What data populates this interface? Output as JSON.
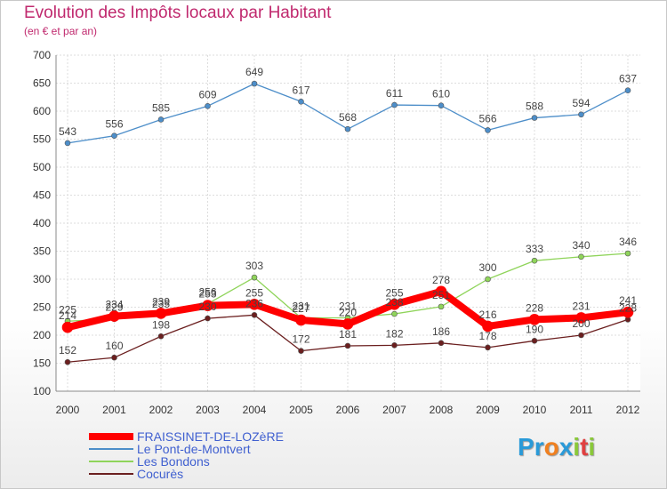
{
  "title": "Evolution des Impôts locaux par Habitant",
  "subtitle": "(en € et par an)",
  "chart_data": {
    "type": "line",
    "title": "Evolution des Impôts locaux par Habitant",
    "subtitle": "(en € et par an)",
    "xlabel": "",
    "ylabel": "",
    "x": [
      "2000",
      "2001",
      "2002",
      "2003",
      "2004",
      "2005",
      "2006",
      "2007",
      "2008",
      "2009",
      "2010",
      "2011",
      "2012"
    ],
    "ylim": [
      100,
      700
    ],
    "yticks": [
      100,
      150,
      200,
      250,
      300,
      350,
      400,
      450,
      500,
      550,
      600,
      650,
      700
    ],
    "grid": true,
    "legend_position": "bottom-left",
    "series": [
      {
        "name": "FRAISSINET-DE-LOZèRE",
        "color": "#ff0000",
        "values": [
          214,
          234,
          239,
          253,
          255,
          227,
          220,
          255,
          278,
          216,
          228,
          231,
          241
        ]
      },
      {
        "name": "Le Pont-de-Montvert",
        "color": "#4d8ec9",
        "values": [
          543,
          556,
          585,
          609,
          649,
          617,
          568,
          611,
          610,
          566,
          588,
          594,
          637
        ]
      },
      {
        "name": "Les Bondons",
        "color": "#8fd45a",
        "values": [
          225,
          229,
          235,
          256,
          303,
          231,
          231,
          238,
          251,
          300,
          333,
          340,
          346
        ]
      },
      {
        "name": "Cocurès",
        "color": "#6b1f1f",
        "values": [
          152,
          160,
          198,
          230,
          236,
          172,
          181,
          182,
          186,
          178,
          190,
          200,
          228
        ]
      }
    ]
  },
  "legend": [
    {
      "label": "FRAISSINET-DE-LOZèRE",
      "color": "#ff0000",
      "label_color": "#4060d0"
    },
    {
      "label": "Le Pont-de-Montvert",
      "color": "#4d8ec9",
      "label_color": "#4060d0"
    },
    {
      "label": "Les Bondons",
      "color": "#8fd45a",
      "label_color": "#4060d0"
    },
    {
      "label": "Cocurès",
      "color": "#6b1f1f",
      "label_color": "#4060d0"
    }
  ],
  "logo": {
    "letters": [
      "P",
      "r",
      "o",
      "x",
      "i",
      "t",
      "i"
    ],
    "colors": [
      "#2a9ad8",
      "#2a9ad8",
      "#f08020",
      "#2a9ad8",
      "#8ac83a",
      "#e04040",
      "#8ac83a"
    ]
  }
}
